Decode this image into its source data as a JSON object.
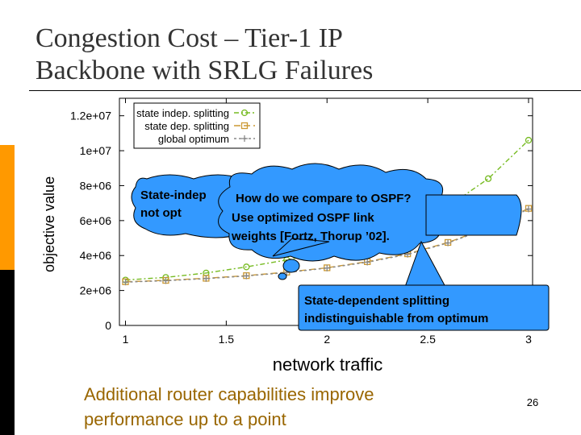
{
  "slide": {
    "title_line1": "Congestion Cost – Tier-1 IP",
    "title_line2": "Backbone with SRLG Failures",
    "footer_note": "Additional router capabilities improve performance up to a point",
    "page_number": "26"
  },
  "callouts": {
    "ospf_line1": "How do we compare to OSPF?",
    "ospf_line2": "Use optimized OSPF link",
    "ospf_line3": "weights [Fortz, Thorup ’02].",
    "indep_line1": "State-indep",
    "indep_line2": "not opt",
    "dep_line1": "State-dependent splitting",
    "dep_line2": "indistinguishable from optimum"
  },
  "chart_data": {
    "type": "line",
    "xlabel": "network traffic",
    "ylabel": "objective value",
    "xlim": [
      0.97,
      3.02
    ],
    "ylim": [
      0,
      13000000
    ],
    "x_ticks": [
      1,
      1.5,
      2,
      2.5,
      3
    ],
    "x_tick_labels": [
      "1",
      "1.5",
      "2",
      "2.5",
      "3"
    ],
    "y_ticks": [
      0,
      2000000,
      4000000,
      6000000,
      8000000,
      10000000,
      12000000
    ],
    "y_tick_labels": [
      "0",
      "2e+06",
      "4e+06",
      "6e+06",
      "8e+06",
      "1e+07",
      "1.2e+07"
    ],
    "grid": false,
    "legend_position": "top-left",
    "x": [
      1,
      1.2,
      1.4,
      1.6,
      1.8,
      2.0,
      2.2,
      2.4,
      2.6,
      2.8,
      3.0
    ],
    "series": [
      {
        "name": "state indep. splitting",
        "color": "#77bb22",
        "marker": "circle",
        "values": [
          2600000,
          2750000,
          3000000,
          3350000,
          3750000,
          4250000,
          4850000,
          5600000,
          6800000,
          8400000,
          10600000
        ]
      },
      {
        "name": "state dep. splitting",
        "color": "#cc9933",
        "marker": "square",
        "values": [
          2500000,
          2580000,
          2700000,
          2850000,
          3050000,
          3300000,
          3650000,
          4100000,
          4750000,
          5600000,
          6700000
        ]
      },
      {
        "name": "global optimum",
        "color": "#888888",
        "marker": "plus",
        "values": [
          2480000,
          2560000,
          2680000,
          2830000,
          3030000,
          3280000,
          3620000,
          4070000,
          4720000,
          5570000,
          6660000
        ]
      }
    ]
  },
  "colors": {
    "title": "#333333",
    "footer_note": "#996600",
    "bar_orange": "#ff9900",
    "bar_black": "#000000",
    "callout_fill": "#3399ff"
  }
}
